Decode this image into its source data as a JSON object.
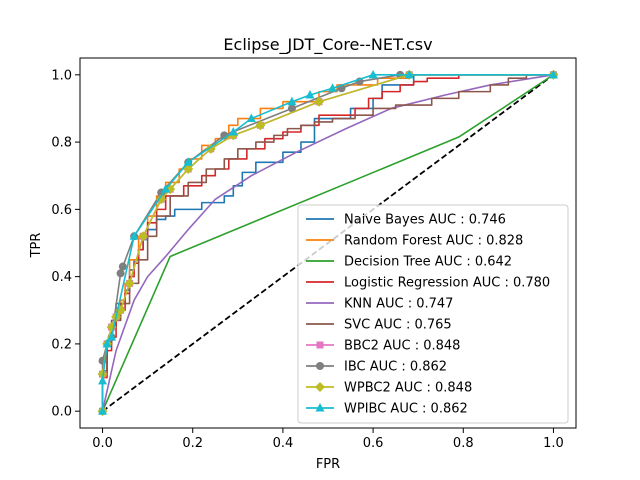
{
  "chart_data": {
    "type": "line",
    "title": "Eclipse_JDT_Core--NET.csv",
    "xlabel": "FPR",
    "ylabel": "TPR",
    "xlim": [
      -0.05,
      1.05
    ],
    "ylim": [
      -0.05,
      1.05
    ],
    "xticks": [
      "0.0",
      "0.2",
      "0.4",
      "0.6",
      "0.8",
      "1.0"
    ],
    "yticks": [
      "0.0",
      "0.2",
      "0.4",
      "0.6",
      "0.8",
      "1.0"
    ],
    "legend_position": "lower-right",
    "grid": false,
    "baseline": {
      "x": [
        0,
        1
      ],
      "y": [
        0,
        1
      ],
      "color": "#000000",
      "style": "dashed"
    },
    "series": [
      {
        "name": "Naive Bayes AUC : 0.746",
        "color": "#1f77b4",
        "marker": "none",
        "step": true,
        "x": [
          0,
          0.01,
          0.02,
          0.03,
          0.05,
          0.06,
          0.07,
          0.08,
          0.09,
          0.1,
          0.12,
          0.14,
          0.16,
          0.22,
          0.27,
          0.29,
          0.31,
          0.34,
          0.4,
          0.44,
          0.47,
          0.55,
          0.6,
          0.62,
          0.69,
          1.0
        ],
        "y": [
          0,
          0.12,
          0.2,
          0.25,
          0.32,
          0.36,
          0.42,
          0.45,
          0.48,
          0.51,
          0.54,
          0.57,
          0.58,
          0.6,
          0.62,
          0.64,
          0.67,
          0.71,
          0.74,
          0.77,
          0.8,
          0.87,
          0.9,
          0.93,
          0.97,
          1.0
        ]
      },
      {
        "name": "Random Forest AUC : 0.828",
        "color": "#ff7f0e",
        "marker": "none",
        "step": true,
        "x": [
          0,
          0.01,
          0.02,
          0.03,
          0.04,
          0.05,
          0.06,
          0.08,
          0.1,
          0.12,
          0.14,
          0.17,
          0.19,
          0.22,
          0.25,
          0.28,
          0.3,
          0.35,
          0.4,
          0.48,
          0.52,
          0.61,
          0.68,
          0.79,
          1.0
        ],
        "y": [
          0,
          0.12,
          0.2,
          0.26,
          0.3,
          0.33,
          0.38,
          0.45,
          0.52,
          0.58,
          0.64,
          0.68,
          0.72,
          0.75,
          0.79,
          0.81,
          0.85,
          0.87,
          0.9,
          0.92,
          0.95,
          0.97,
          0.99,
          1.0,
          1.0
        ]
      },
      {
        "name": "Decision Tree AUC : 0.642",
        "color": "#2ca02c",
        "marker": "none",
        "step": false,
        "x": [
          0,
          0.15,
          0.79,
          1.0
        ],
        "y": [
          0,
          0.46,
          0.815,
          1.0
        ]
      },
      {
        "name": "Logistic Regression AUC : 0.780",
        "color": "#d62728",
        "marker": "none",
        "step": true,
        "x": [
          0,
          0.01,
          0.02,
          0.03,
          0.04,
          0.05,
          0.06,
          0.07,
          0.08,
          0.09,
          0.1,
          0.12,
          0.14,
          0.18,
          0.22,
          0.25,
          0.28,
          0.32,
          0.36,
          0.4,
          0.44,
          0.48,
          0.56,
          0.59,
          0.62,
          0.66,
          0.69,
          0.72,
          0.79,
          1.0
        ],
        "y": [
          0,
          0.1,
          0.18,
          0.22,
          0.27,
          0.3,
          0.35,
          0.4,
          0.44,
          0.48,
          0.52,
          0.56,
          0.6,
          0.64,
          0.67,
          0.7,
          0.72,
          0.75,
          0.78,
          0.81,
          0.83,
          0.85,
          0.88,
          0.9,
          0.93,
          0.95,
          0.97,
          0.98,
          0.99,
          1.0
        ]
      },
      {
        "name": "KNN AUC : 0.747",
        "color": "#9467bd",
        "marker": "none",
        "step": false,
        "x": [
          0,
          0.03,
          0.07,
          0.1,
          0.14,
          0.19,
          0.25,
          0.33,
          0.43,
          0.54,
          0.64,
          0.76,
          0.86,
          1.0
        ],
        "y": [
          0,
          0.18,
          0.33,
          0.4,
          0.46,
          0.54,
          0.63,
          0.7,
          0.77,
          0.84,
          0.9,
          0.94,
          0.97,
          1.0
        ]
      },
      {
        "name": "SVC AUC : 0.765",
        "color": "#8c564b",
        "marker": "none",
        "step": true,
        "x": [
          0,
          0.01,
          0.02,
          0.04,
          0.06,
          0.08,
          0.1,
          0.12,
          0.15,
          0.19,
          0.23,
          0.27,
          0.3,
          0.34,
          0.38,
          0.41,
          0.44,
          0.47,
          0.51,
          0.56,
          0.6,
          0.65,
          0.73,
          0.79,
          0.86,
          0.9,
          0.94,
          1.0
        ],
        "y": [
          0,
          0.12,
          0.2,
          0.27,
          0.32,
          0.38,
          0.45,
          0.52,
          0.58,
          0.64,
          0.68,
          0.72,
          0.75,
          0.78,
          0.8,
          0.82,
          0.84,
          0.85,
          0.86,
          0.87,
          0.88,
          0.9,
          0.91,
          0.93,
          0.95,
          0.97,
          0.99,
          1.0
        ]
      },
      {
        "name": "BBC2 AUC : 0.848",
        "color": "#e377c2",
        "marker": "square",
        "step": false,
        "x": [
          0,
          0,
          0.01,
          0.02,
          0.03,
          0.04,
          0.06,
          0.09,
          0.13,
          0.15,
          0.19,
          0.24,
          0.29,
          0.35,
          0.48,
          0.68,
          1.0
        ],
        "y": [
          0,
          0.11,
          0.2,
          0.25,
          0.28,
          0.3,
          0.38,
          0.52,
          0.63,
          0.66,
          0.72,
          0.78,
          0.82,
          0.85,
          0.92,
          1.0,
          1.0
        ]
      },
      {
        "name": "IBC AUC : 0.862",
        "color": "#7f7f7f",
        "marker": "circle",
        "step": false,
        "x": [
          0,
          0,
          0.01,
          0.02,
          0.04,
          0.045,
          0.07,
          0.13,
          0.19,
          0.27,
          0.42,
          0.53,
          0.57,
          0.66,
          0.68,
          1.0
        ],
        "y": [
          0,
          0.15,
          0.2,
          0.22,
          0.41,
          0.43,
          0.52,
          0.65,
          0.74,
          0.82,
          0.9,
          0.96,
          0.98,
          1.0,
          1.0,
          1.0
        ]
      },
      {
        "name": "WPBC2 AUC : 0.848",
        "color": "#bcbd22",
        "marker": "diamond",
        "step": false,
        "x": [
          0,
          0,
          0.01,
          0.02,
          0.03,
          0.04,
          0.06,
          0.09,
          0.13,
          0.15,
          0.19,
          0.24,
          0.29,
          0.35,
          0.48,
          0.68,
          1.0
        ],
        "y": [
          0,
          0.11,
          0.2,
          0.25,
          0.28,
          0.3,
          0.38,
          0.52,
          0.63,
          0.66,
          0.72,
          0.78,
          0.82,
          0.85,
          0.92,
          1.0,
          1.0
        ]
      },
      {
        "name": "WPIBC AUC : 0.862",
        "color": "#17becf",
        "marker": "triangle",
        "step": false,
        "x": [
          0,
          0,
          0.01,
          0.02,
          0.07,
          0.14,
          0.19,
          0.29,
          0.33,
          0.42,
          0.46,
          0.51,
          0.6,
          0.68,
          1.0
        ],
        "y": [
          0,
          0.09,
          0.2,
          0.22,
          0.52,
          0.66,
          0.74,
          0.83,
          0.87,
          0.92,
          0.94,
          0.96,
          1.0,
          1.0,
          1.0
        ]
      }
    ]
  }
}
